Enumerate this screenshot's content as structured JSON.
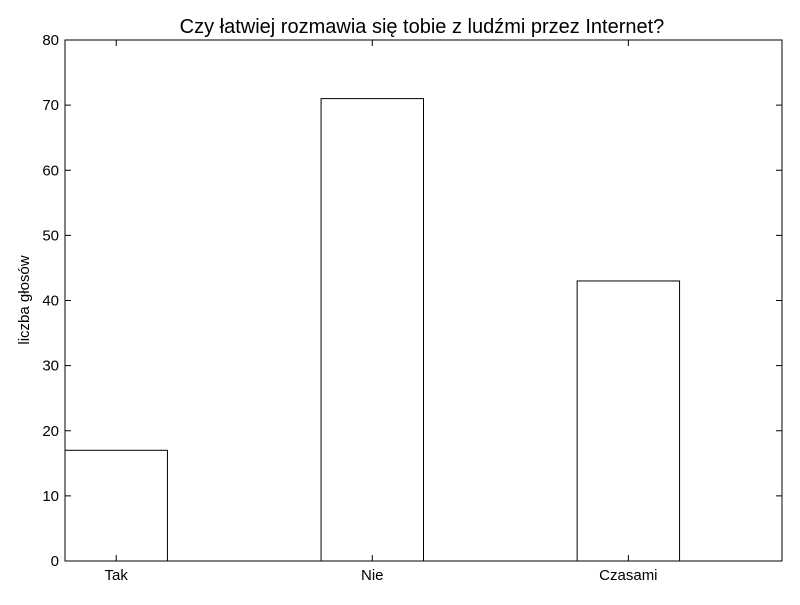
{
  "chart_data": {
    "type": "bar",
    "title": "Czy łatwiej rozmawia się tobie z ludźmi przez Internet?",
    "xlabel": "",
    "ylabel": "liczba głosów",
    "categories": [
      "Tak",
      "Nie",
      "Czasami"
    ],
    "values": [
      17,
      71,
      43
    ],
    "ylim": [
      0,
      80
    ],
    "yticks": [
      0,
      10,
      20,
      30,
      40,
      50,
      60,
      70,
      80
    ],
    "grid": false,
    "legend": false,
    "colors": {
      "bar_fill": "#ffffff",
      "bar_stroke": "#000000",
      "axis": "#000000",
      "background": "#ffffff"
    }
  }
}
